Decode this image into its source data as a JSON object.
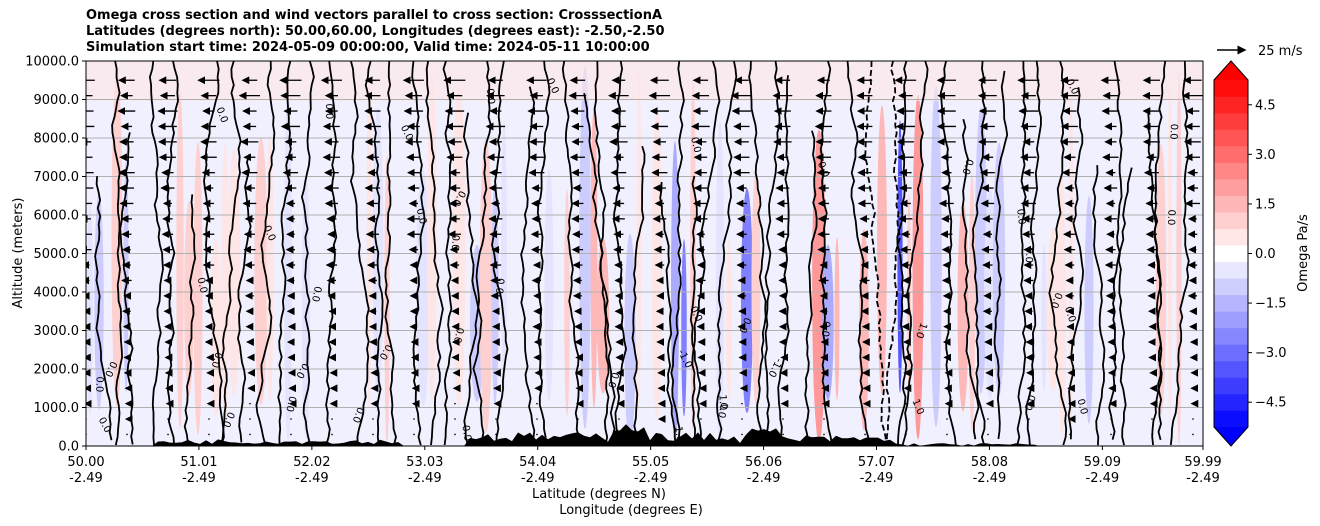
{
  "title_lines": [
    "Omega cross section and wind vectors parallel to cross section: CrosssectionA",
    "Latitudes (degrees north): 50.00,60.00, Longitudes (degrees east): -2.50,-2.50",
    "Simulation start time: 2024-05-09 00:00:00, Valid time: 2024-05-11 10:00:00"
  ],
  "chart_data": {
    "type": "heatmap",
    "subtype": "vertical cross section (filled contours + contour lines + wind vectors)",
    "ylabel": "Altitude (meters)",
    "xlabel_lines": [
      "Latitude (degrees N)",
      "Longitude (degrees E)"
    ],
    "ylim": [
      0,
      10000
    ],
    "yticks": [
      "0.0",
      "1000.0",
      "2000.0",
      "3000.0",
      "4000.0",
      "5000.0",
      "6000.0",
      "7000.0",
      "8000.0",
      "9000.0",
      "10000.0"
    ],
    "xlim": [
      50.0,
      59.99
    ],
    "xticks": [
      {
        "lat": "50.00",
        "lon": "-2.49"
      },
      {
        "lat": "51.01",
        "lon": "-2.49"
      },
      {
        "lat": "52.02",
        "lon": "-2.49"
      },
      {
        "lat": "53.03",
        "lon": "-2.49"
      },
      {
        "lat": "54.04",
        "lon": "-2.49"
      },
      {
        "lat": "55.05",
        "lon": "-2.49"
      },
      {
        "lat": "56.06",
        "lon": "-2.49"
      },
      {
        "lat": "57.07",
        "lon": "-2.49"
      },
      {
        "lat": "58.08",
        "lon": "-2.49"
      },
      {
        "lat": "59.09",
        "lon": "-2.49"
      },
      {
        "lat": "59.99",
        "lon": "-2.49"
      }
    ],
    "grid": "horizontal",
    "colorbar": {
      "label": "Omega Pa/s",
      "range": [
        -5.25,
        5.25
      ],
      "step": 0.5,
      "ticks": [
        "4.5",
        "3.0",
        "1.5",
        "0.0",
        "−1.5",
        "−3.0",
        "−4.5"
      ],
      "extend": "both",
      "cmap": "bwr",
      "colors": {
        "min": "#0000ff",
        "mid": "#ffffff",
        "max": "#ff0000"
      }
    },
    "contour_labels": [
      "0.0",
      "-1.0",
      "1.0"
    ],
    "reference_vector": {
      "speed": 25,
      "label": "25 m/s"
    },
    "terrain_color": "#000000"
  }
}
